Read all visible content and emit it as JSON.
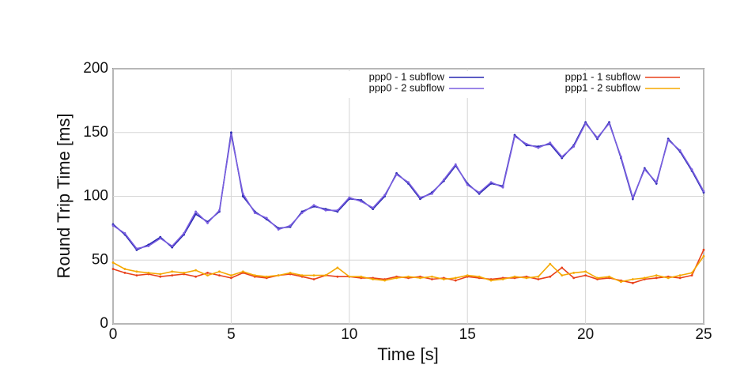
{
  "chart_data": {
    "type": "line",
    "xlabel": "Time [s]",
    "ylabel": "Round Trip Time [ms]",
    "x": [
      0,
      0.5,
      1,
      1.5,
      2,
      2.5,
      3,
      3.5,
      4,
      4.5,
      5,
      5.5,
      6,
      6.5,
      7,
      7.5,
      8,
      8.5,
      9,
      9.5,
      10,
      10.5,
      11,
      11.5,
      12,
      12.5,
      13,
      13.5,
      14,
      14.5,
      15,
      15.5,
      16,
      16.5,
      17,
      17.5,
      18,
      18.5,
      19,
      19.5,
      20,
      20.5,
      21,
      21.5,
      22,
      22.5,
      23,
      23.5,
      24,
      24.5,
      25
    ],
    "series": [
      {
        "name": "ppp0 - 1 subflow",
        "color": "#2626b0",
        "values": [
          78,
          70,
          58,
          62,
          68,
          60,
          70,
          86,
          80,
          88,
          150,
          100,
          88,
          82,
          75,
          76,
          88,
          92,
          90,
          88,
          98,
          97,
          90,
          100,
          118,
          110,
          98,
          103,
          112,
          124,
          110,
          102,
          110,
          108,
          148,
          140,
          139,
          141,
          130,
          140,
          158,
          145,
          158,
          130,
          98,
          122,
          110,
          145,
          135,
          120,
          103
        ]
      },
      {
        "name": "ppp0 - 2 subflow",
        "color": "#7a5fe0",
        "values": [
          77,
          71,
          59,
          61,
          67,
          61,
          71,
          88,
          79,
          89,
          148,
          102,
          87,
          83,
          74,
          77,
          87,
          93,
          89,
          89,
          99,
          96,
          91,
          101,
          117,
          111,
          99,
          102,
          113,
          125,
          109,
          103,
          111,
          107,
          147,
          141,
          138,
          142,
          131,
          139,
          157,
          146,
          157,
          131,
          99,
          121,
          111,
          144,
          136,
          121,
          104
        ]
      },
      {
        "name": "ppp1 - 1 subflow",
        "color": "#e8401a",
        "values": [
          43,
          40,
          38,
          39,
          37,
          38,
          39,
          37,
          40,
          38,
          36,
          40,
          37,
          36,
          38,
          39,
          37,
          35,
          38,
          37,
          37,
          36,
          36,
          35,
          37,
          36,
          37,
          35,
          36,
          34,
          37,
          36,
          35,
          36,
          36,
          37,
          35,
          37,
          44,
          36,
          38,
          35,
          36,
          34,
          32,
          35,
          36,
          37,
          36,
          38,
          58
        ]
      },
      {
        "name": "ppp1 - 2 subflow",
        "color": "#f5a800",
        "values": [
          48,
          43,
          41,
          40,
          39,
          41,
          40,
          42,
          38,
          41,
          38,
          41,
          38,
          37,
          38,
          40,
          38,
          38,
          38,
          44,
          37,
          37,
          35,
          34,
          36,
          37,
          36,
          37,
          35,
          36,
          38,
          37,
          34,
          35,
          37,
          36,
          37,
          47,
          38,
          40,
          41,
          36,
          37,
          33,
          35,
          36,
          38,
          36,
          38,
          40,
          53
        ]
      }
    ],
    "xlim": [
      0,
      25
    ],
    "xticks": [
      0,
      5,
      10,
      15,
      20,
      25
    ],
    "ylim": [
      0,
      200
    ],
    "yticks": [
      0,
      50,
      100,
      150,
      200
    ],
    "grid": true
  }
}
